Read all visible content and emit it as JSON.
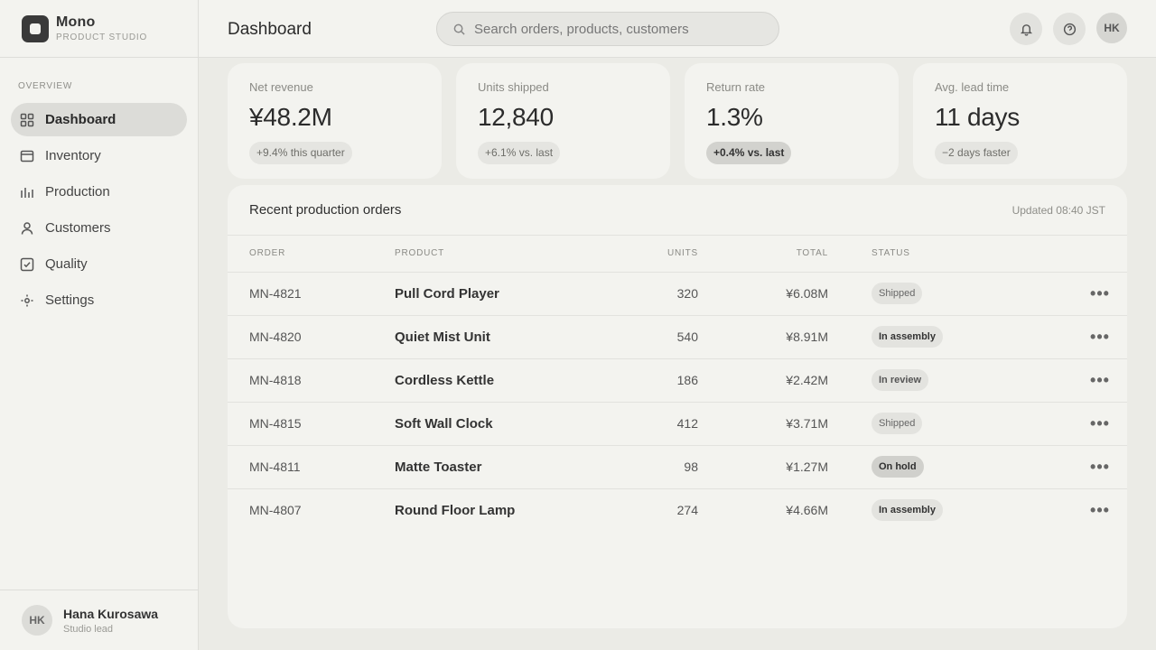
{
  "brand": {
    "name": "Mono",
    "subtitle": "PRODUCT STUDIO"
  },
  "sidebar": {
    "section_label": "OVERVIEW",
    "items": [
      {
        "label": "Dashboard",
        "icon": "grid-icon",
        "active": true
      },
      {
        "label": "Inventory",
        "icon": "box-icon"
      },
      {
        "label": "Production",
        "icon": "bar-chart-icon"
      },
      {
        "label": "Customers",
        "icon": "user-icon"
      },
      {
        "label": "Quality",
        "icon": "check-square-icon"
      },
      {
        "label": "Settings",
        "icon": "gear-icon"
      }
    ],
    "user": {
      "initials": "HK",
      "name": "Hana Kurosawa",
      "role": "Studio lead"
    }
  },
  "header": {
    "title": "Dashboard",
    "search_placeholder": "Search orders, products, customers",
    "avatar_initials": "HK"
  },
  "stats": [
    {
      "label": "Net revenue",
      "value": "¥48.2M",
      "badge": "+9.4% this quarter",
      "strong": false
    },
    {
      "label": "Units shipped",
      "value": "12,840",
      "badge": "+6.1% vs. last",
      "strong": false
    },
    {
      "label": "Return rate",
      "value": "1.3%",
      "badge": "+0.4% vs. last",
      "strong": true
    },
    {
      "label": "Avg. lead time",
      "value": "11 days",
      "badge": "−2 days faster",
      "strong": false
    }
  ],
  "orders": {
    "title": "Recent production orders",
    "updated": "Updated 08:40 JST",
    "columns": {
      "order": "ORDER",
      "product": "PRODUCT",
      "units": "UNITS",
      "total": "TOTAL",
      "status": "STATUS"
    },
    "rows": [
      {
        "order": "MN-4821",
        "product": "Pull Cord Player",
        "units": "320",
        "total": "¥6.08M",
        "status": "Shipped"
      },
      {
        "order": "MN-4820",
        "product": "Quiet Mist Unit",
        "units": "540",
        "total": "¥8.91M",
        "status": "In assembly"
      },
      {
        "order": "MN-4818",
        "product": "Cordless Kettle",
        "units": "186",
        "total": "¥2.42M",
        "status": "In review"
      },
      {
        "order": "MN-4815",
        "product": "Soft Wall Clock",
        "units": "412",
        "total": "¥3.71M",
        "status": "Shipped"
      },
      {
        "order": "MN-4811",
        "product": "Matte Toaster",
        "units": "98",
        "total": "¥1.27M",
        "status": "On hold"
      },
      {
        "order": "MN-4807",
        "product": "Round Floor Lamp",
        "units": "274",
        "total": "¥4.66M",
        "status": "In assembly"
      }
    ],
    "row_menu": "•••"
  }
}
